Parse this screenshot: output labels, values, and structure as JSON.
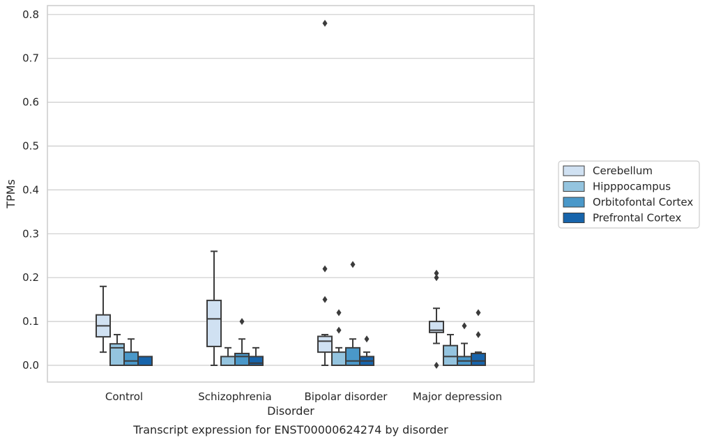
{
  "chart_data": {
    "type": "boxplot",
    "title": "Transcript expression for ENST00000624274 by disorder",
    "xlabel": "Disorder",
    "ylabel": "TPMs",
    "ylim": [
      -0.04,
      0.82
    ],
    "yticks": [
      0.0,
      0.1,
      0.2,
      0.3,
      0.4,
      0.5,
      0.6,
      0.7,
      0.8
    ],
    "ytick_labels": [
      "0.0",
      "0.1",
      "0.2",
      "0.3",
      "0.4",
      "0.5",
      "0.6",
      "0.7",
      "0.8"
    ],
    "grid": true,
    "legend_position": "right",
    "categories": [
      "Control",
      "Schizophrenia",
      "Bipolar disorder",
      "Major depression"
    ],
    "series": [
      {
        "name": "Cerebellum",
        "color": "#d0e1f2",
        "boxes": [
          {
            "whislo": 0.03,
            "q1": 0.065,
            "med": 0.09,
            "q3": 0.115,
            "whishi": 0.18,
            "fliers": []
          },
          {
            "whislo": 0.0,
            "q1": 0.043,
            "med": 0.106,
            "q3": 0.148,
            "whishi": 0.26,
            "fliers": []
          },
          {
            "whislo": 0.0,
            "q1": 0.03,
            "med": 0.055,
            "q3": 0.066,
            "whishi": 0.07,
            "fliers": [
              0.78,
              0.22,
              0.15
            ]
          },
          {
            "whislo": 0.05,
            "q1": 0.075,
            "med": 0.08,
            "q3": 0.1,
            "whishi": 0.13,
            "fliers": [
              0.21,
              0.2,
              0.0
            ]
          }
        ]
      },
      {
        "name": "Hipppocampus",
        "color": "#94c4df",
        "boxes": [
          {
            "whislo": 0.0,
            "q1": 0.0,
            "med": 0.04,
            "q3": 0.049,
            "whishi": 0.07,
            "fliers": []
          },
          {
            "whislo": 0.0,
            "q1": 0.0,
            "med": 0.0,
            "q3": 0.02,
            "whishi": 0.04,
            "fliers": []
          },
          {
            "whislo": 0.0,
            "q1": 0.0,
            "med": 0.0,
            "q3": 0.03,
            "whishi": 0.04,
            "fliers": [
              0.12,
              0.08
            ]
          },
          {
            "whislo": 0.0,
            "q1": 0.0,
            "med": 0.02,
            "q3": 0.045,
            "whishi": 0.07,
            "fliers": []
          }
        ]
      },
      {
        "name": "Orbitofontal Cortex",
        "color": "#4a98c9",
        "boxes": [
          {
            "whislo": 0.0,
            "q1": 0.0,
            "med": 0.01,
            "q3": 0.03,
            "whishi": 0.06,
            "fliers": []
          },
          {
            "whislo": 0.0,
            "q1": 0.0,
            "med": 0.02,
            "q3": 0.027,
            "whishi": 0.06,
            "fliers": [
              0.1
            ]
          },
          {
            "whislo": 0.0,
            "q1": 0.0,
            "med": 0.01,
            "q3": 0.04,
            "whishi": 0.06,
            "fliers": [
              0.23
            ]
          },
          {
            "whislo": 0.0,
            "q1": 0.0,
            "med": 0.01,
            "q3": 0.02,
            "whishi": 0.05,
            "fliers": [
              0.09
            ]
          }
        ]
      },
      {
        "name": "Prefrontal Cortex",
        "color": "#1764ab",
        "boxes": [
          {
            "whislo": 0.0,
            "q1": 0.0,
            "med": 0.0,
            "q3": 0.02,
            "whishi": 0.02,
            "fliers": []
          },
          {
            "whislo": 0.0,
            "q1": 0.0,
            "med": 0.005,
            "q3": 0.02,
            "whishi": 0.04,
            "fliers": []
          },
          {
            "whislo": 0.0,
            "q1": 0.0,
            "med": 0.01,
            "q3": 0.02,
            "whishi": 0.03,
            "fliers": [
              0.06
            ]
          },
          {
            "whislo": 0.0,
            "q1": 0.0,
            "med": 0.01,
            "q3": 0.027,
            "whishi": 0.03,
            "fliers": [
              0.12,
              0.07
            ]
          }
        ]
      }
    ]
  }
}
